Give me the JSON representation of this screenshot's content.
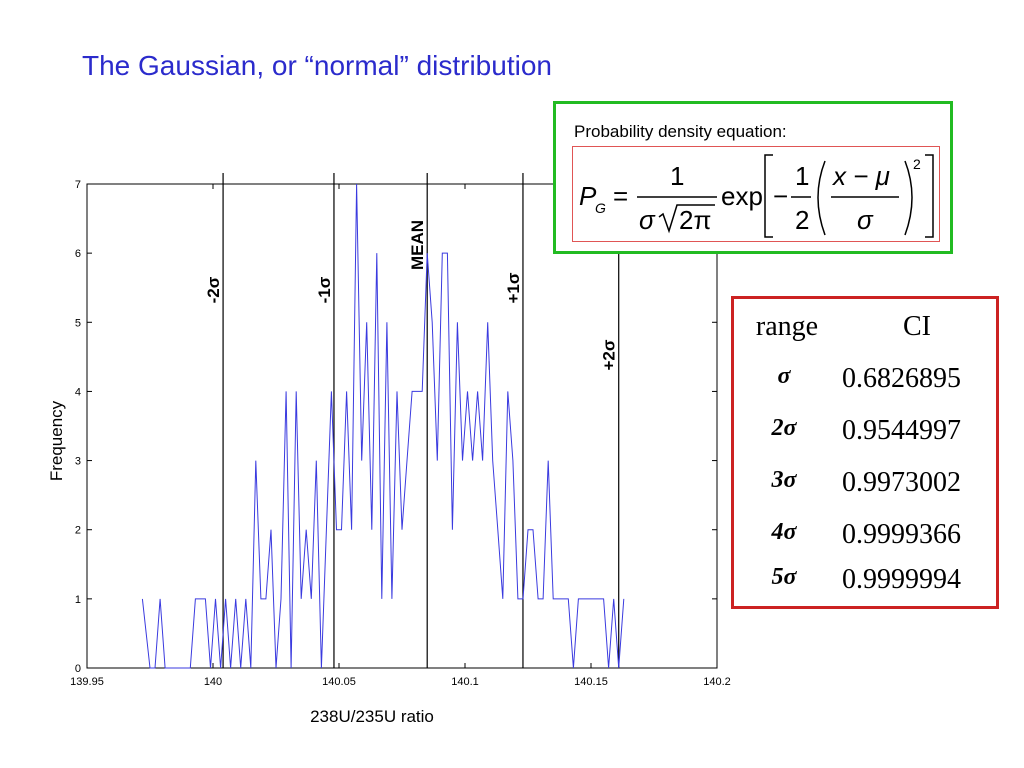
{
  "slide": {
    "title": "The Gaussian, or “normal” distribution"
  },
  "equation": {
    "label": "Probability density equation:",
    "lhs_symbol": "P",
    "lhs_subscript": "G",
    "equals": "=",
    "frac_num": "1",
    "frac_den_sigma": "σ",
    "frac_den_root": "2π",
    "exp_word": "exp",
    "minus": "−",
    "half_num": "1",
    "half_den": "2",
    "inner_num": "x − μ",
    "inner_den": "σ",
    "power": "2"
  },
  "ci_table": {
    "headers": [
      "range",
      "CI"
    ],
    "rows": [
      {
        "range": "σ",
        "ci": "0.6826895"
      },
      {
        "range": "2σ",
        "ci": "0.9544997"
      },
      {
        "range": "3σ",
        "ci": "0.9973002"
      },
      {
        "range": "4σ",
        "ci": "0.9999366"
      },
      {
        "range": "5σ",
        "ci": "0.9999994"
      }
    ]
  },
  "chart_data": {
    "type": "line",
    "title": "",
    "xlabel": "238U/235U ratio",
    "ylabel": "Frequency",
    "xlim": [
      139.95,
      140.2
    ],
    "ylim": [
      0,
      7
    ],
    "x_ticks": [
      "139.95",
      "140",
      "140.05",
      "140.1",
      "140.15",
      "140.2"
    ],
    "x_tick_values": [
      139.95,
      140,
      140.05,
      140.1,
      140.15,
      140.2
    ],
    "y_ticks": [
      "0",
      "1",
      "2",
      "3",
      "4",
      "5",
      "6",
      "7"
    ],
    "y_tick_values": [
      0,
      1,
      2,
      3,
      4,
      5,
      6,
      7
    ],
    "grid": false,
    "line_color": "#3a3adf",
    "series": [
      {
        "x": [
          139.972,
          139.975,
          139.977,
          139.979,
          139.981,
          139.983,
          139.985,
          139.987,
          139.989,
          139.991,
          139.993,
          139.995,
          139.997,
          139.999,
          140.001,
          140.003,
          140.005,
          140.007,
          140.009,
          140.011,
          140.013,
          140.015,
          140.017,
          140.019,
          140.021,
          140.023,
          140.025,
          140.027,
          140.029,
          140.031,
          140.033,
          140.035,
          140.037,
          140.039,
          140.041,
          140.043,
          140.045,
          140.047,
          140.049,
          140.051,
          140.053,
          140.055,
          140.057,
          140.059,
          140.061,
          140.063,
          140.065,
          140.067,
          140.069,
          140.071,
          140.073,
          140.075,
          140.077,
          140.079,
          140.081,
          140.083,
          140.085,
          140.087,
          140.089,
          140.091,
          140.093,
          140.095,
          140.097,
          140.099,
          140.101,
          140.103,
          140.105,
          140.107,
          140.109,
          140.111,
          140.113,
          140.115,
          140.117,
          140.119,
          140.121,
          140.123,
          140.125,
          140.127,
          140.129,
          140.131,
          140.133,
          140.135,
          140.137,
          140.139,
          140.141,
          140.143,
          140.145,
          140.147,
          140.149,
          140.151,
          140.153,
          140.155,
          140.157,
          140.159,
          140.161,
          140.163
        ],
        "y": [
          1,
          0,
          0,
          1,
          0,
          0,
          0,
          0,
          0,
          0,
          1,
          1,
          1,
          0,
          1,
          0,
          1,
          0,
          1,
          0,
          1,
          0,
          3,
          1,
          1,
          2,
          0,
          1,
          4,
          0,
          4,
          1,
          2,
          1,
          3,
          0,
          2,
          4,
          2,
          2,
          4,
          2,
          7,
          3,
          5,
          2,
          6,
          1,
          5,
          1,
          4,
          2,
          3,
          4,
          4,
          4,
          6,
          5,
          3,
          6,
          6,
          2,
          5,
          3,
          4,
          3,
          4,
          3,
          5,
          3,
          2,
          1,
          4,
          3,
          1,
          1,
          2,
          2,
          1,
          1,
          3,
          1,
          1,
          1,
          1,
          0,
          1,
          1,
          1,
          1,
          1,
          1,
          0,
          1,
          0,
          1
        ]
      }
    ],
    "vertical_markers": [
      {
        "label": "-2σ",
        "x": 140.004
      },
      {
        "label": "-1σ",
        "x": 140.048
      },
      {
        "label": "MEAN",
        "x": 140.085
      },
      {
        "label": "+1σ",
        "x": 140.123
      },
      {
        "label": "+2σ",
        "x": 140.161
      }
    ]
  }
}
